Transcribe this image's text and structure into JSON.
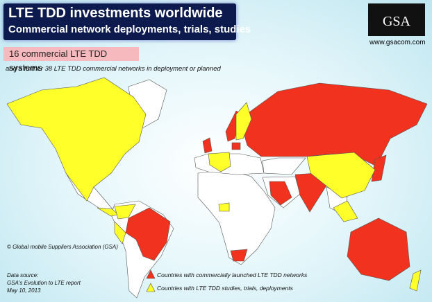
{
  "header": {
    "title": "LTE TDD investments worldwide",
    "subtitle": "Commercial network deployments, trials, studies"
  },
  "logo": {
    "text": "GSA",
    "url": "www.gsacom.com"
  },
  "highlight": "16 commercial LTE TDD systems",
  "note": "and a further 38 LTE TDD commercial networks in deployment or planned",
  "copyright": "© Global mobile Suppliers Association (GSA)",
  "source": {
    "lines": [
      "Data source:",
      "GSA's Evolution to LTE report",
      "May 10, 2013"
    ]
  },
  "legend": {
    "items": [
      {
        "label": "Countries with commercially launched LTE TDD networks",
        "color": "#f0321e"
      },
      {
        "label": "Countries with LTE TDD studies, trials, deployments",
        "color": "#ffff2a"
      }
    ]
  }
}
